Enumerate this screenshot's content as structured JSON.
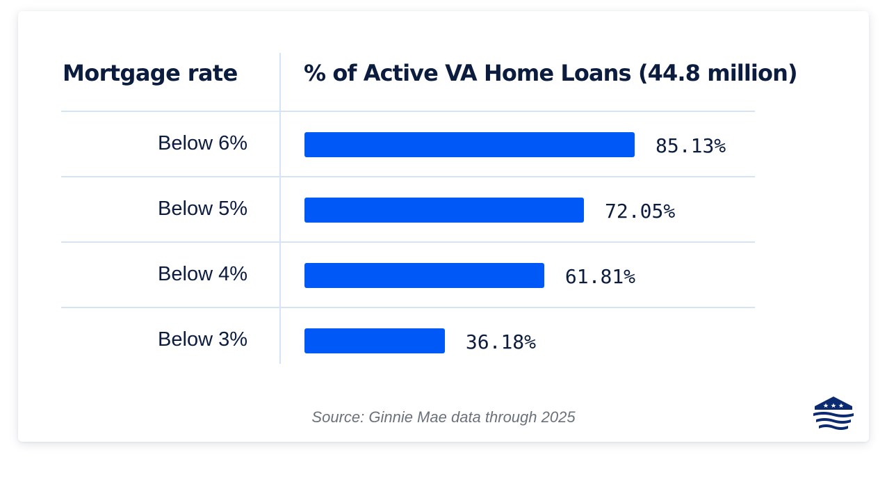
{
  "chart_data": {
    "type": "bar",
    "orientation": "horizontal",
    "category_header": "Mortgage rate",
    "value_header": "% of Active VA Home Loans (44.8 million)",
    "categories": [
      "Below 6%",
      "Below 5%",
      "Below 4%",
      "Below 3%"
    ],
    "values": [
      85.13,
      72.05,
      61.81,
      36.18
    ],
    "value_labels": [
      "85.13%",
      "72.05%",
      "61.81%",
      "36.18%"
    ],
    "unit": "%",
    "xlim": [
      0,
      100
    ],
    "grid": false,
    "bar_color": "#0059f7"
  },
  "source": "Source: Ginnie Mae data through 2025",
  "logo": {
    "icon": "house-stars-logo-icon",
    "color": "#0b2a6f"
  },
  "colors": {
    "text": "#0b1c3f",
    "divider": "#d5e3f7",
    "source_text": "#6b717b"
  }
}
